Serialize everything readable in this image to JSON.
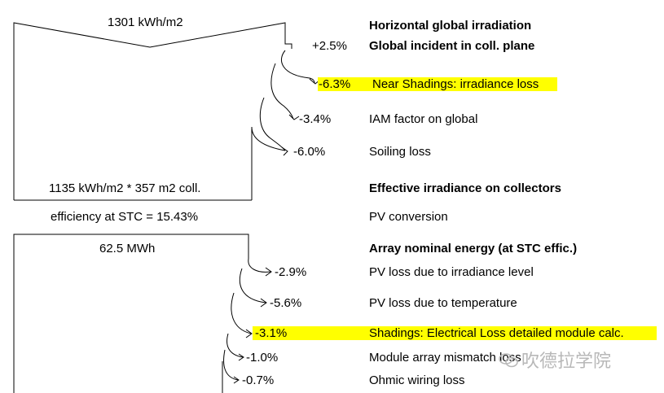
{
  "diagram": {
    "top_value": "1301 kWh/m2",
    "effective_value": "1135 kWh/m2 * 357 m2 coll.",
    "efficiency": "efficiency at STC = 15.43%",
    "array_value": "62.5 MWh",
    "steps": [
      {
        "value": "",
        "label": "Horizontal global irradiation",
        "bold": true
      },
      {
        "value": "+2.5%",
        "label": "Global incident in coll. plane",
        "bold": true
      },
      {
        "value": "-6.3%",
        "label": "Near Shadings: irradiance loss",
        "highlight": true
      },
      {
        "value": "-3.4%",
        "label": "IAM factor on global"
      },
      {
        "value": "-6.0%",
        "label": "Soiling loss"
      },
      {
        "value": "",
        "label": "Effective irradiance on collectors",
        "bold": true
      },
      {
        "value": "",
        "label": "PV conversion"
      },
      {
        "value": "",
        "label": "Array nominal energy (at STC effic.)",
        "bold": true
      },
      {
        "value": "-2.9%",
        "label": "PV loss due to irradiance level"
      },
      {
        "value": "-5.6%",
        "label": "PV loss due to temperature"
      },
      {
        "value": "-3.1%",
        "label": "Shadings: Electrical Loss detailed module calc.",
        "highlight": true
      },
      {
        "value": "-1.0%",
        "label": "Module array mismatch loss"
      },
      {
        "value": "-0.7%",
        "label": "Ohmic wiring loss"
      }
    ],
    "highlight_color": "#ffff00"
  },
  "watermark": {
    "text": "吹德拉学院",
    "icon": "wechat-icon"
  }
}
